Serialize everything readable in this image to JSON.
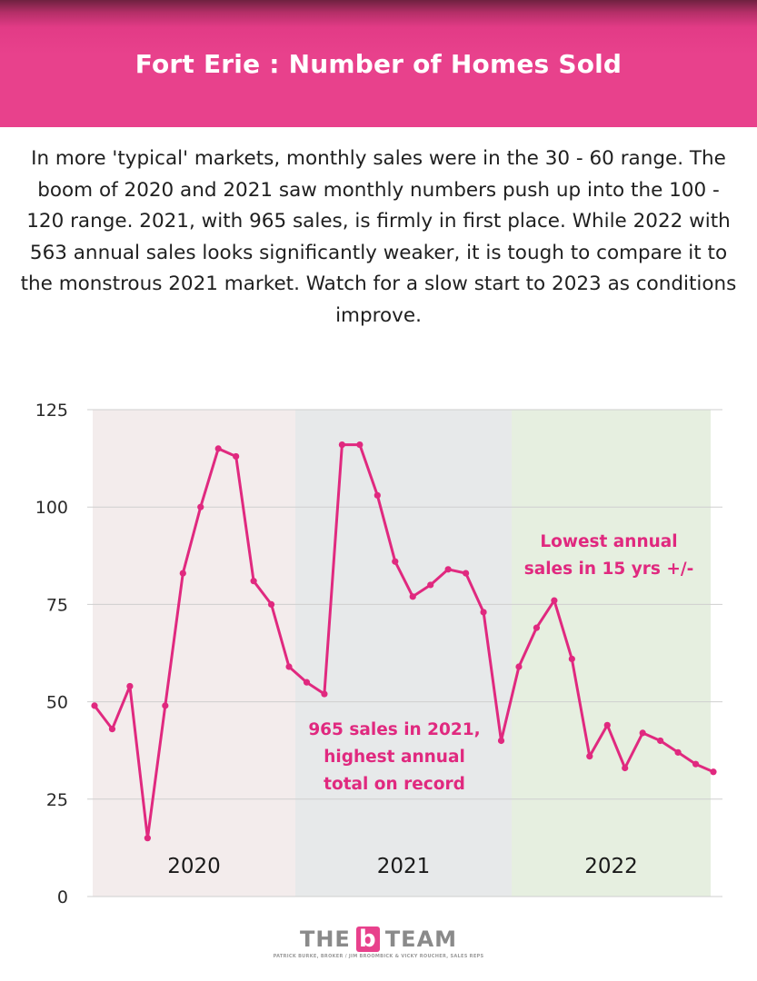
{
  "header": {
    "title": "Fort Erie : Number of Homes Sold"
  },
  "description": "In more 'typical' markets, monthly sales were in the 30 - 60 range. The boom of 2020 and 2021 saw monthly numbers push up into the 100 - 120 range. 2021, with 965 sales, is firmly in first place. While 2022 with 563 annual sales looks significantly weaker, it is tough to compare it to the monstrous 2021 market. Watch for a slow start to 2023 as conditions improve.",
  "chart_data": {
    "type": "line",
    "ylim": [
      0,
      125
    ],
    "yticks": [
      "0",
      "25",
      "50",
      "75",
      "100",
      "125"
    ],
    "grid": true,
    "line_color": "#e0297f",
    "bands": [
      {
        "label": "2020",
        "color": "#f3ecec",
        "start_index": 0,
        "end_index": 11
      },
      {
        "label": "2021",
        "color": "#e7e9ea",
        "start_index": 12,
        "end_index": 23
      },
      {
        "label": "2022",
        "color": "#e6efe0",
        "start_index": 24,
        "end_index": 35
      }
    ],
    "series": [
      {
        "values": [
          49,
          43,
          54,
          15,
          49,
          83,
          100,
          115,
          113,
          81,
          75,
          59,
          55,
          52,
          116,
          116,
          103,
          86,
          77,
          80,
          84,
          83,
          73,
          40,
          59,
          69,
          76,
          61,
          36,
          44,
          33,
          42,
          40,
          37,
          34,
          32
        ]
      }
    ],
    "annotations": [
      {
        "lines": [
          "Lowest annual",
          "sales in 15 yrs +/-"
        ],
        "color": "#e0297f"
      },
      {
        "lines": [
          "965 sales in 2021,",
          "highest annual",
          "total on record"
        ],
        "color": "#e0297f"
      }
    ]
  },
  "footer": {
    "logo_left": "THE",
    "logo_mark": "b",
    "logo_right": "TEAM",
    "logo_tagline": "PATRICK BURKE, BROKER / JIM BROOMBICK & VICKY ROUCHER, SALES REPS"
  }
}
